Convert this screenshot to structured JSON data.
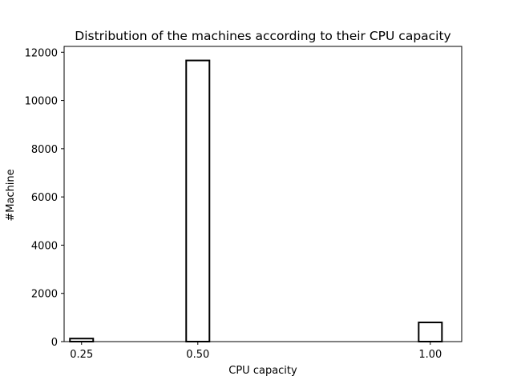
{
  "chart_data": {
    "type": "bar",
    "title": "Distribution of the machines according to their CPU capacity",
    "xlabel": "CPU capacity",
    "ylabel": "#Machine",
    "x": [
      0.25,
      0.5,
      1.0
    ],
    "values": [
      126,
      11659,
      795
    ],
    "x_tick_labels": [
      "0.25",
      "0.50",
      "1.00"
    ],
    "y_ticks": [
      0,
      2000,
      4000,
      6000,
      8000,
      10000,
      12000
    ],
    "y_tick_labels": [
      "0",
      "2000",
      "4000",
      "6000",
      "8000",
      "10000",
      "12000"
    ],
    "xlim": [
      0.2125,
      1.0675
    ],
    "ylim": [
      0,
      12242
    ],
    "bar_fill": "#ffffff",
    "bar_edge": "#000000",
    "grid": false,
    "legend": "none"
  }
}
